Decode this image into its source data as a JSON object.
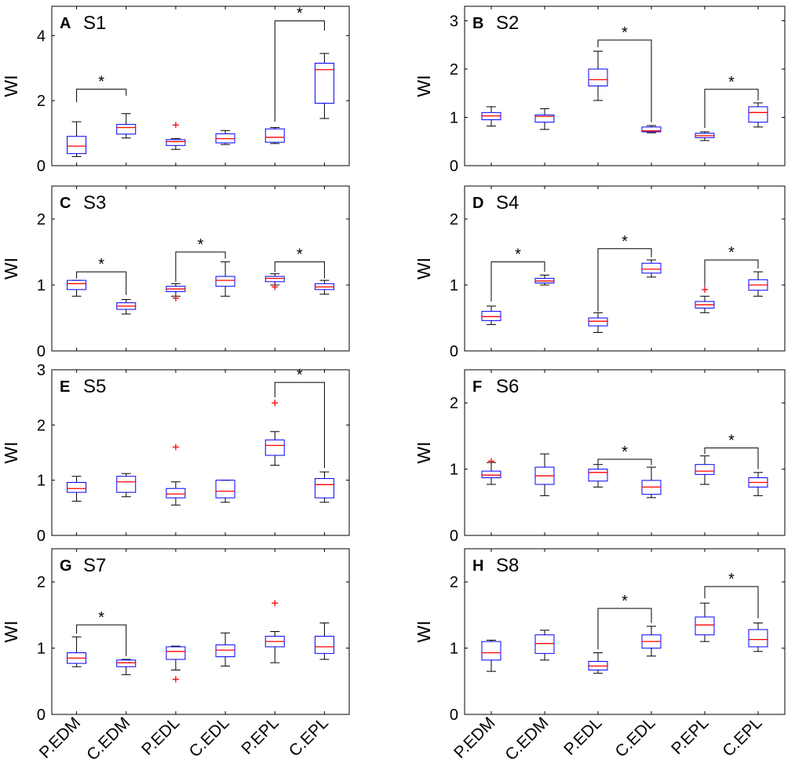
{
  "figure": {
    "ylabel": "WI",
    "categories": [
      "P.EDM",
      "C.EDM",
      "P.EDL",
      "C.EDL",
      "P.EPL",
      "C.EPL"
    ],
    "colors": {
      "box": "#0000ff",
      "median": "#ff0000",
      "outlier": "#ff0000",
      "whisker": "#000000",
      "axes": "#000000"
    }
  },
  "chart_data": [
    {
      "type": "box",
      "letter": "A",
      "title": "S1",
      "ylabel": "WI",
      "ylim": [
        0,
        4.9
      ],
      "yticks": [
        0,
        2,
        4
      ],
      "categories": [
        "P.EDM",
        "C.EDM",
        "P.EDL",
        "C.EDL",
        "P.EPL",
        "C.EPL"
      ],
      "boxes": [
        {
          "lw": 0.28,
          "q1": 0.37,
          "med": 0.6,
          "q3": 0.9,
          "uw": 1.35,
          "outliers": []
        },
        {
          "lw": 0.85,
          "q1": 0.97,
          "med": 1.17,
          "q3": 1.27,
          "uw": 1.6,
          "outliers": []
        },
        {
          "lw": 0.5,
          "q1": 0.62,
          "med": 0.74,
          "q3": 0.8,
          "uw": 0.83,
          "outliers": [
            1.25
          ]
        },
        {
          "lw": 0.65,
          "q1": 0.7,
          "med": 0.83,
          "q3": 0.98,
          "uw": 1.08,
          "outliers": []
        },
        {
          "lw": 0.68,
          "q1": 0.72,
          "med": 0.87,
          "q3": 1.13,
          "uw": 1.17,
          "outliers": []
        },
        {
          "lw": 1.45,
          "q1": 1.92,
          "med": 2.95,
          "q3": 3.15,
          "uw": 3.45,
          "outliers": []
        }
      ],
      "significance": [
        {
          "from": "P.EDM",
          "to": "C.EDM",
          "bar": 2.35,
          "left_end": 1.95,
          "right_end": 2.15,
          "label": "*"
        },
        {
          "from": "P.EPL",
          "to": "C.EPL",
          "bar": 4.45,
          "left_end": 1.35,
          "right_end": 4.15,
          "label": "*"
        }
      ]
    },
    {
      "type": "box",
      "letter": "B",
      "title": "S2",
      "ylabel": "WI",
      "ylim": [
        0,
        3.3
      ],
      "yticks": [
        0,
        1,
        2,
        3
      ],
      "categories": [
        "P.EDM",
        "C.EDM",
        "P.EDL",
        "C.EDL",
        "P.EPL",
        "C.EPL"
      ],
      "boxes": [
        {
          "lw": 0.82,
          "q1": 0.95,
          "med": 1.03,
          "q3": 1.1,
          "uw": 1.22,
          "outliers": []
        },
        {
          "lw": 0.75,
          "q1": 0.9,
          "med": 1.02,
          "q3": 1.05,
          "uw": 1.18,
          "outliers": []
        },
        {
          "lw": 1.35,
          "q1": 1.65,
          "med": 1.78,
          "q3": 2.0,
          "uw": 2.37,
          "outliers": []
        },
        {
          "lw": 0.68,
          "q1": 0.7,
          "med": 0.72,
          "q3": 0.8,
          "uw": 0.83,
          "outliers": []
        },
        {
          "lw": 0.52,
          "q1": 0.58,
          "med": 0.62,
          "q3": 0.67,
          "uw": 0.7,
          "outliers": []
        },
        {
          "lw": 0.8,
          "q1": 0.9,
          "med": 1.1,
          "q3": 1.22,
          "uw": 1.3,
          "outliers": []
        }
      ],
      "significance": [
        {
          "from": "P.EDL",
          "to": "C.EDL",
          "bar": 2.6,
          "left_end": 2.45,
          "right_end": 0.9,
          "label": "*"
        },
        {
          "from": "P.EPL",
          "to": "C.EPL",
          "bar": 1.58,
          "left_end": 0.78,
          "right_end": 1.35,
          "label": "*"
        }
      ]
    },
    {
      "type": "box",
      "letter": "C",
      "title": "S3",
      "ylabel": "WI",
      "ylim": [
        0,
        2.5
      ],
      "yticks": [
        0,
        1,
        2
      ],
      "categories": [
        "P.EDM",
        "C.EDM",
        "P.EDL",
        "C.EDL",
        "P.EPL",
        "C.EPL"
      ],
      "boxes": [
        {
          "lw": 0.83,
          "q1": 0.93,
          "med": 1.02,
          "q3": 1.07,
          "uw": 1.07,
          "outliers": []
        },
        {
          "lw": 0.56,
          "q1": 0.63,
          "med": 0.68,
          "q3": 0.73,
          "uw": 0.78,
          "outliers": []
        },
        {
          "lw": 0.83,
          "q1": 0.9,
          "med": 0.94,
          "q3": 0.98,
          "uw": 1.02,
          "outliers": [
            0.8
          ]
        },
        {
          "lw": 0.83,
          "q1": 0.98,
          "med": 1.07,
          "q3": 1.13,
          "uw": 1.35,
          "outliers": []
        },
        {
          "lw": 1.0,
          "q1": 1.05,
          "med": 1.1,
          "q3": 1.13,
          "uw": 1.17,
          "outliers": [
            0.97
          ]
        },
        {
          "lw": 0.86,
          "q1": 0.93,
          "med": 0.97,
          "q3": 1.02,
          "uw": 1.07,
          "outliers": []
        }
      ],
      "significance": [
        {
          "from": "P.EDM",
          "to": "C.EDM",
          "bar": 1.2,
          "left_end": 1.1,
          "right_end": 0.85,
          "label": "*"
        },
        {
          "from": "P.EDL",
          "to": "C.EDL",
          "bar": 1.5,
          "left_end": 1.05,
          "right_end": 1.4,
          "label": "*"
        },
        {
          "from": "P.EPL",
          "to": "C.EPL",
          "bar": 1.35,
          "left_end": 1.2,
          "right_end": 1.1,
          "label": "*"
        }
      ]
    },
    {
      "type": "box",
      "letter": "D",
      "title": "S4",
      "ylabel": "WI",
      "ylim": [
        0,
        2.5
      ],
      "yticks": [
        0,
        1,
        2
      ],
      "categories": [
        "P.EDM",
        "C.EDM",
        "P.EDL",
        "C.EDL",
        "P.EPL",
        "C.EPL"
      ],
      "boxes": [
        {
          "lw": 0.4,
          "q1": 0.46,
          "med": 0.52,
          "q3": 0.6,
          "uw": 0.68,
          "outliers": []
        },
        {
          "lw": 1.0,
          "q1": 1.03,
          "med": 1.06,
          "q3": 1.1,
          "uw": 1.15,
          "outliers": []
        },
        {
          "lw": 0.28,
          "q1": 0.38,
          "med": 0.45,
          "q3": 0.5,
          "uw": 0.58,
          "outliers": []
        },
        {
          "lw": 1.12,
          "q1": 1.18,
          "med": 1.24,
          "q3": 1.33,
          "uw": 1.38,
          "outliers": []
        },
        {
          "lw": 0.58,
          "q1": 0.65,
          "med": 0.7,
          "q3": 0.75,
          "uw": 0.83,
          "outliers": [
            0.93
          ]
        },
        {
          "lw": 0.83,
          "q1": 0.92,
          "med": 1.0,
          "q3": 1.08,
          "uw": 1.2,
          "outliers": []
        }
      ],
      "significance": [
        {
          "from": "P.EDM",
          "to": "C.EDM",
          "bar": 1.35,
          "left_end": 0.75,
          "right_end": 1.2,
          "label": "*"
        },
        {
          "from": "P.EDL",
          "to": "C.EDL",
          "bar": 1.55,
          "left_end": 0.6,
          "right_end": 1.42,
          "label": "*"
        },
        {
          "from": "P.EPL",
          "to": "C.EPL",
          "bar": 1.38,
          "left_end": 0.98,
          "right_end": 1.25,
          "label": "*"
        }
      ]
    },
    {
      "type": "box",
      "letter": "E",
      "title": "S5",
      "ylabel": "WI",
      "ylim": [
        0,
        3.0
      ],
      "yticks": [
        0,
        1,
        2,
        3
      ],
      "categories": [
        "P.EDM",
        "C.EDM",
        "P.EDL",
        "C.EDL",
        "P.EPL",
        "C.EPL"
      ],
      "boxes": [
        {
          "lw": 0.62,
          "q1": 0.78,
          "med": 0.85,
          "q3": 0.96,
          "uw": 1.07,
          "outliers": []
        },
        {
          "lw": 0.7,
          "q1": 0.78,
          "med": 0.97,
          "q3": 1.07,
          "uw": 1.12,
          "outliers": []
        },
        {
          "lw": 0.55,
          "q1": 0.68,
          "med": 0.75,
          "q3": 0.85,
          "uw": 0.97,
          "outliers": [
            1.6
          ]
        },
        {
          "lw": 0.6,
          "q1": 0.68,
          "med": 0.8,
          "q3": 1.0,
          "uw": 1.0,
          "outliers": []
        },
        {
          "lw": 1.27,
          "q1": 1.45,
          "med": 1.63,
          "q3": 1.73,
          "uw": 1.88,
          "outliers": [
            2.4
          ]
        },
        {
          "lw": 0.6,
          "q1": 0.68,
          "med": 0.92,
          "q3": 1.03,
          "uw": 1.15,
          "outliers": []
        }
      ],
      "significance": [
        {
          "from": "P.EPL",
          "to": "C.EPL",
          "bar": 2.77,
          "left_end": 2.5,
          "right_end": 1.22,
          "label": "*"
        }
      ]
    },
    {
      "type": "box",
      "letter": "F",
      "title": "S6",
      "ylabel": "WI",
      "ylim": [
        0,
        2.5
      ],
      "yticks": [
        0,
        1,
        2
      ],
      "categories": [
        "P.EDM",
        "C.EDM",
        "P.EDL",
        "C.EDL",
        "P.EPL",
        "C.EPL"
      ],
      "boxes": [
        {
          "lw": 0.77,
          "q1": 0.87,
          "med": 0.91,
          "q3": 0.97,
          "uw": 1.1,
          "outliers": [
            1.12
          ]
        },
        {
          "lw": 0.6,
          "q1": 0.77,
          "med": 0.9,
          "q3": 1.03,
          "uw": 1.23,
          "outliers": []
        },
        {
          "lw": 0.73,
          "q1": 0.82,
          "med": 0.95,
          "q3": 1.0,
          "uw": 1.07,
          "outliers": []
        },
        {
          "lw": 0.57,
          "q1": 0.62,
          "med": 0.73,
          "q3": 0.83,
          "uw": 1.03,
          "outliers": []
        },
        {
          "lw": 0.77,
          "q1": 0.92,
          "med": 0.97,
          "q3": 1.07,
          "uw": 1.2,
          "outliers": []
        },
        {
          "lw": 0.6,
          "q1": 0.73,
          "med": 0.8,
          "q3": 0.87,
          "uw": 0.95,
          "outliers": []
        }
      ],
      "significance": [
        {
          "from": "P.EDL",
          "to": "C.EDL",
          "bar": 1.15,
          "left_end": 1.08,
          "right_end": 1.06,
          "label": "*"
        },
        {
          "from": "P.EPL",
          "to": "C.EPL",
          "bar": 1.32,
          "left_end": 1.23,
          "right_end": 1.0,
          "label": "*"
        }
      ]
    },
    {
      "type": "box",
      "letter": "G",
      "title": "S7",
      "ylabel": "WI",
      "ylim": [
        0,
        2.5
      ],
      "yticks": [
        0,
        1,
        2
      ],
      "categories": [
        "P.EDM",
        "C.EDM",
        "P.EDL",
        "C.EDL",
        "P.EPL",
        "C.EPL"
      ],
      "boxes": [
        {
          "lw": 0.72,
          "q1": 0.77,
          "med": 0.85,
          "q3": 0.93,
          "uw": 1.17,
          "outliers": []
        },
        {
          "lw": 0.6,
          "q1": 0.72,
          "med": 0.78,
          "q3": 0.82,
          "uw": 0.83,
          "outliers": []
        },
        {
          "lw": 0.67,
          "q1": 0.83,
          "med": 0.95,
          "q3": 1.02,
          "uw": 1.03,
          "outliers": [
            0.53
          ]
        },
        {
          "lw": 0.73,
          "q1": 0.87,
          "med": 0.97,
          "q3": 1.05,
          "uw": 1.23,
          "outliers": []
        },
        {
          "lw": 0.78,
          "q1": 1.02,
          "med": 1.1,
          "q3": 1.18,
          "uw": 1.25,
          "outliers": [
            1.68
          ]
        },
        {
          "lw": 0.83,
          "q1": 0.92,
          "med": 1.02,
          "q3": 1.18,
          "uw": 1.38,
          "outliers": []
        }
      ],
      "significance": [
        {
          "from": "P.EDM",
          "to": "C.EDM",
          "bar": 1.35,
          "left_end": 1.22,
          "right_end": 0.88,
          "label": "*"
        }
      ]
    },
    {
      "type": "box",
      "letter": "H",
      "title": "S8",
      "ylabel": "WI",
      "ylim": [
        0,
        2.5
      ],
      "yticks": [
        0,
        1,
        2
      ],
      "categories": [
        "P.EDM",
        "C.EDM",
        "P.EDL",
        "C.EDL",
        "P.EPL",
        "C.EPL"
      ],
      "boxes": [
        {
          "lw": 0.65,
          "q1": 0.82,
          "med": 0.93,
          "q3": 1.1,
          "uw": 1.12,
          "outliers": []
        },
        {
          "lw": 0.82,
          "q1": 0.92,
          "med": 1.07,
          "q3": 1.2,
          "uw": 1.27,
          "outliers": []
        },
        {
          "lw": 0.62,
          "q1": 0.67,
          "med": 0.73,
          "q3": 0.8,
          "uw": 0.93,
          "outliers": []
        },
        {
          "lw": 0.88,
          "q1": 1.0,
          "med": 1.1,
          "q3": 1.2,
          "uw": 1.33,
          "outliers": []
        },
        {
          "lw": 1.1,
          "q1": 1.2,
          "med": 1.35,
          "q3": 1.47,
          "uw": 1.68,
          "outliers": []
        },
        {
          "lw": 0.95,
          "q1": 1.02,
          "med": 1.13,
          "q3": 1.28,
          "uw": 1.38,
          "outliers": []
        }
      ],
      "significance": [
        {
          "from": "P.EDL",
          "to": "C.EDL",
          "bar": 1.6,
          "left_end": 0.98,
          "right_end": 1.38,
          "label": "*"
        },
        {
          "from": "P.EPL",
          "to": "C.EPL",
          "bar": 1.93,
          "left_end": 1.75,
          "right_end": 1.45,
          "label": "*"
        }
      ]
    }
  ]
}
